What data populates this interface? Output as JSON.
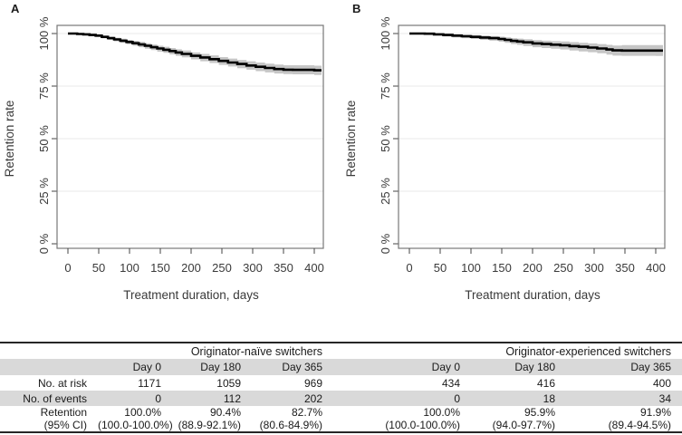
{
  "colors": {
    "curve": "#000000",
    "ci_band": "#c6c6c6",
    "grid": "#ededed",
    "table_stripe": "#d9d9d9",
    "frame": "#777777",
    "axis_text": "#3a3a3a"
  },
  "chart_data": [
    {
      "type": "line",
      "panel_label": "A",
      "group": "Originator-naïve switchers",
      "xlabel": "Treatment duration, days",
      "ylabel": "Retention rate",
      "xlim": [
        0,
        400
      ],
      "ylim": [
        0,
        100
      ],
      "grid": "horizontal only",
      "x_ticks": [
        0,
        50,
        100,
        150,
        200,
        250,
        300,
        350,
        400
      ],
      "y_ticks": [
        {
          "value": 0,
          "label": "0 %"
        },
        {
          "value": 25,
          "label": "25 %"
        },
        {
          "value": 50,
          "label": "50 %"
        },
        {
          "value": 75,
          "label": "75 %"
        },
        {
          "value": 100,
          "label": "100 %"
        }
      ],
      "point_format": [
        "day",
        "retention_pct",
        "ci95_low",
        "ci95_high"
      ],
      "points": [
        [
          0,
          100,
          100,
          100
        ],
        [
          15,
          99.8,
          99.5,
          100
        ],
        [
          25,
          99.6,
          99.2,
          99.9
        ],
        [
          35,
          99.3,
          98.8,
          99.7
        ],
        [
          45,
          99.0,
          98.4,
          99.5
        ],
        [
          55,
          98.4,
          97.7,
          99.0
        ],
        [
          65,
          97.8,
          97.0,
          98.5
        ],
        [
          75,
          97.2,
          96.3,
          98.0
        ],
        [
          85,
          96.6,
          95.6,
          97.5
        ],
        [
          95,
          96.0,
          94.9,
          97.0
        ],
        [
          105,
          95.4,
          94.2,
          96.5
        ],
        [
          115,
          94.8,
          93.5,
          96.0
        ],
        [
          125,
          94.2,
          92.8,
          95.4
        ],
        [
          135,
          93.5,
          92.1,
          94.8
        ],
        [
          145,
          92.9,
          91.4,
          94.2
        ],
        [
          155,
          92.3,
          90.8,
          93.7
        ],
        [
          165,
          91.7,
          90.1,
          93.1
        ],
        [
          175,
          91.0,
          89.4,
          92.5
        ],
        [
          185,
          90.3,
          88.7,
          91.9
        ],
        [
          200,
          89.4,
          87.7,
          91.0
        ],
        [
          215,
          88.6,
          86.8,
          90.3
        ],
        [
          230,
          87.8,
          86.0,
          89.6
        ],
        [
          245,
          87.0,
          85.1,
          88.8
        ],
        [
          260,
          86.2,
          84.3,
          88.1
        ],
        [
          275,
          85.5,
          83.5,
          87.4
        ],
        [
          290,
          84.8,
          82.8,
          86.8
        ],
        [
          305,
          84.2,
          82.1,
          86.2
        ],
        [
          320,
          83.6,
          81.5,
          85.7
        ],
        [
          335,
          83.1,
          81.0,
          85.2
        ],
        [
          350,
          82.8,
          80.7,
          84.9
        ],
        [
          365,
          82.7,
          80.6,
          84.9
        ],
        [
          400,
          82.5,
          80.3,
          84.7
        ]
      ]
    },
    {
      "type": "line",
      "panel_label": "B",
      "group": "Originator-experienced switchers",
      "xlabel": "Treatment duration, days",
      "ylabel": "Retention rate",
      "xlim": [
        0,
        400
      ],
      "ylim": [
        0,
        100
      ],
      "grid": "horizontal only",
      "x_ticks": [
        0,
        50,
        100,
        150,
        200,
        250,
        300,
        350,
        400
      ],
      "y_ticks": [
        {
          "value": 0,
          "label": "0 %"
        },
        {
          "value": 25,
          "label": "25 %"
        },
        {
          "value": 50,
          "label": "50 %"
        },
        {
          "value": 75,
          "label": "75 %"
        },
        {
          "value": 100,
          "label": "100 %"
        }
      ],
      "point_format": [
        "day",
        "retention_pct",
        "ci95_low",
        "ci95_high"
      ],
      "points": [
        [
          0,
          100,
          100,
          100
        ],
        [
          25,
          99.9,
          99.6,
          100
        ],
        [
          40,
          99.6,
          99.1,
          100
        ],
        [
          55,
          99.3,
          98.6,
          99.9
        ],
        [
          70,
          99.0,
          98.2,
          99.7
        ],
        [
          85,
          98.7,
          97.8,
          99.5
        ],
        [
          100,
          98.4,
          97.4,
          99.3
        ],
        [
          115,
          98.1,
          97.0,
          99.0
        ],
        [
          130,
          97.8,
          96.6,
          98.8
        ],
        [
          145,
          97.4,
          96.1,
          98.5
        ],
        [
          155,
          97.0,
          95.6,
          98.2
        ],
        [
          165,
          96.5,
          95.0,
          97.8
        ],
        [
          175,
          96.2,
          94.6,
          97.6
        ],
        [
          185,
          95.8,
          94.1,
          97.3
        ],
        [
          200,
          95.3,
          93.5,
          96.9
        ],
        [
          215,
          95.0,
          93.1,
          96.6
        ],
        [
          230,
          94.7,
          92.8,
          96.4
        ],
        [
          245,
          94.4,
          92.4,
          96.2
        ],
        [
          260,
          94.0,
          91.9,
          95.9
        ],
        [
          275,
          93.7,
          91.5,
          95.6
        ],
        [
          290,
          93.3,
          91.1,
          95.3
        ],
        [
          305,
          92.9,
          90.6,
          95.0
        ],
        [
          320,
          92.4,
          90.0,
          94.6
        ],
        [
          330,
          92.0,
          89.5,
          94.3
        ],
        [
          345,
          91.9,
          89.4,
          94.5
        ],
        [
          365,
          91.9,
          89.4,
          94.5
        ],
        [
          400,
          91.9,
          89.3,
          94.5
        ]
      ]
    }
  ],
  "table": {
    "row_labels": {
      "at_risk": "No. at risk",
      "events": "No. of events",
      "retention": "Retention",
      "ci": "(95% CI)"
    },
    "groups": [
      {
        "title": "Originator-naïve switchers",
        "days": [
          "Day 0",
          "Day 180",
          "Day 365"
        ],
        "at_risk": [
          "1171",
          "1059",
          "969"
        ],
        "events": [
          "0",
          "112",
          "202"
        ],
        "retention": [
          "100.0%",
          "90.4%",
          "82.7%"
        ],
        "ci": [
          "(100.0-100.0%)",
          "(88.9-92.1%)",
          "(80.6-84.9%)"
        ]
      },
      {
        "title": "Originator-experienced switchers",
        "days": [
          "Day 0",
          "Day 180",
          "Day 365"
        ],
        "at_risk": [
          "434",
          "416",
          "400"
        ],
        "events": [
          "0",
          "18",
          "34"
        ],
        "retention": [
          "100.0%",
          "95.9%",
          "91.9%"
        ],
        "ci": [
          "(100.0-100.0%)",
          "(94.0-97.7%)",
          "(89.4-94.5%)"
        ]
      }
    ]
  }
}
